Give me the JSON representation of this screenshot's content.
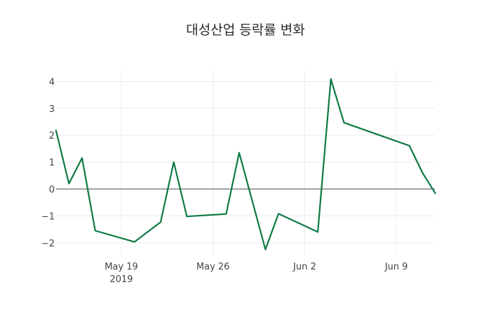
{
  "chart_data": {
    "type": "line",
    "title": "대성산업 등락률 변화",
    "xlabel": "",
    "ylabel": "",
    "x": [
      "2019-05-14",
      "2019-05-15",
      "2019-05-16",
      "2019-05-17",
      "2019-05-20",
      "2019-05-22",
      "2019-05-23",
      "2019-05-24",
      "2019-05-27",
      "2019-05-28",
      "2019-05-30",
      "2019-05-31",
      "2019-06-03",
      "2019-06-04",
      "2019-06-05",
      "2019-06-10",
      "2019-06-11",
      "2019-06-12"
    ],
    "series": [
      {
        "name": "등락률",
        "color": "#0e7a43",
        "values": [
          2.2,
          0.2,
          1.15,
          -1.55,
          -1.97,
          -1.23,
          1.0,
          -1.02,
          -0.93,
          1.35,
          -2.25,
          -0.92,
          -1.6,
          4.09,
          2.47,
          1.61,
          0.6,
          -0.18
        ]
      }
    ],
    "ylim": [
      -2.4,
      4.4
    ],
    "yticks": [
      4,
      3,
      2,
      1,
      0,
      -1,
      -2
    ],
    "ytick_labels": [
      "4",
      "3",
      "2",
      "1",
      "0",
      "−1",
      "−2"
    ],
    "xticks": [
      {
        "date": "2019-05-19",
        "label": "May 19",
        "sublabel": "2019"
      },
      {
        "date": "2019-05-26",
        "label": "May 26",
        "sublabel": ""
      },
      {
        "date": "2019-06-02",
        "label": "Jun 2",
        "sublabel": ""
      },
      {
        "date": "2019-06-09",
        "label": "Jun 9",
        "sublabel": ""
      }
    ],
    "grid": true,
    "zero_line": true,
    "legend": "none"
  }
}
